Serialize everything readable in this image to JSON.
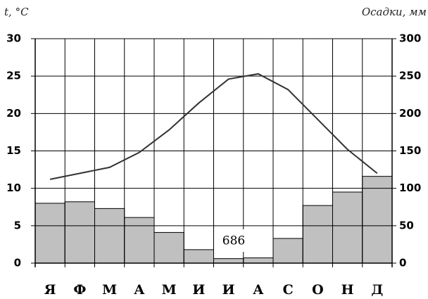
{
  "chart_data": {
    "type": "climatogram",
    "y_label": "t, °C",
    "y2_label": "Осадки, мм",
    "categories": [
      "Я",
      "Ф",
      "М",
      "А",
      "М",
      "И",
      "И",
      "А",
      "С",
      "О",
      "Н",
      "Д"
    ],
    "series": [
      {
        "name": "Осадки",
        "type": "bar",
        "axis": "y2",
        "color": "#c0c0c0",
        "values": [
          80,
          82,
          73,
          61,
          41,
          18,
          6,
          7,
          33,
          77,
          95,
          116
        ]
      },
      {
        "name": "t",
        "type": "line",
        "axis": "y",
        "color": "#333333",
        "values": [
          11.2,
          12.0,
          12.8,
          14.8,
          17.8,
          21.4,
          24.6,
          25.3,
          23.2,
          19.2,
          15.2,
          12.0
        ]
      }
    ],
    "ylim": [
      0,
      30
    ],
    "yticks": [
      0,
      5,
      10,
      15,
      20,
      25,
      30
    ],
    "y2lim": [
      0,
      300
    ],
    "y2ticks": [
      0,
      50,
      100,
      150,
      200,
      250,
      300
    ],
    "annotation": "686",
    "grid": true
  }
}
